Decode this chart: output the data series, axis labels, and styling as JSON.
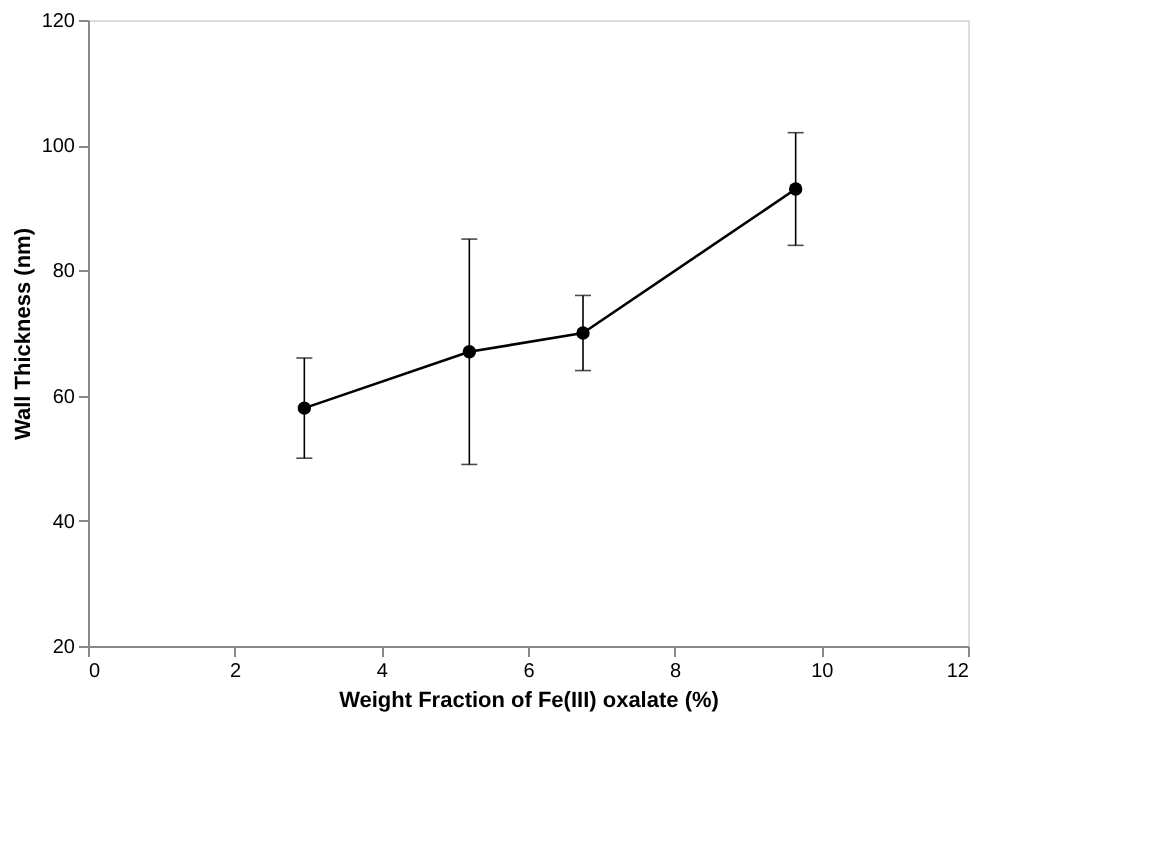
{
  "chart_data": {
    "type": "line",
    "xlabel": "Weight Fraction of Fe(III) oxalate (%)",
    "ylabel": "Wall Thickness (nm)",
    "x": [
      2.95,
      5.2,
      6.75,
      9.65
    ],
    "series": [
      {
        "color": "#000000",
        "values": [
          58,
          67,
          70,
          93
        ],
        "errors": [
          [
            50,
            66
          ],
          [
            49,
            85
          ],
          [
            64,
            76
          ],
          [
            84,
            102
          ]
        ]
      }
    ],
    "xlim": [
      0,
      12
    ],
    "xticks": [
      0,
      2,
      4,
      6,
      8,
      10,
      12
    ],
    "ylim": [
      20,
      120
    ],
    "yticks": [
      20,
      40,
      60,
      80,
      100,
      120
    ],
    "grid": false,
    "marker": "circle",
    "line_style": "solid"
  }
}
